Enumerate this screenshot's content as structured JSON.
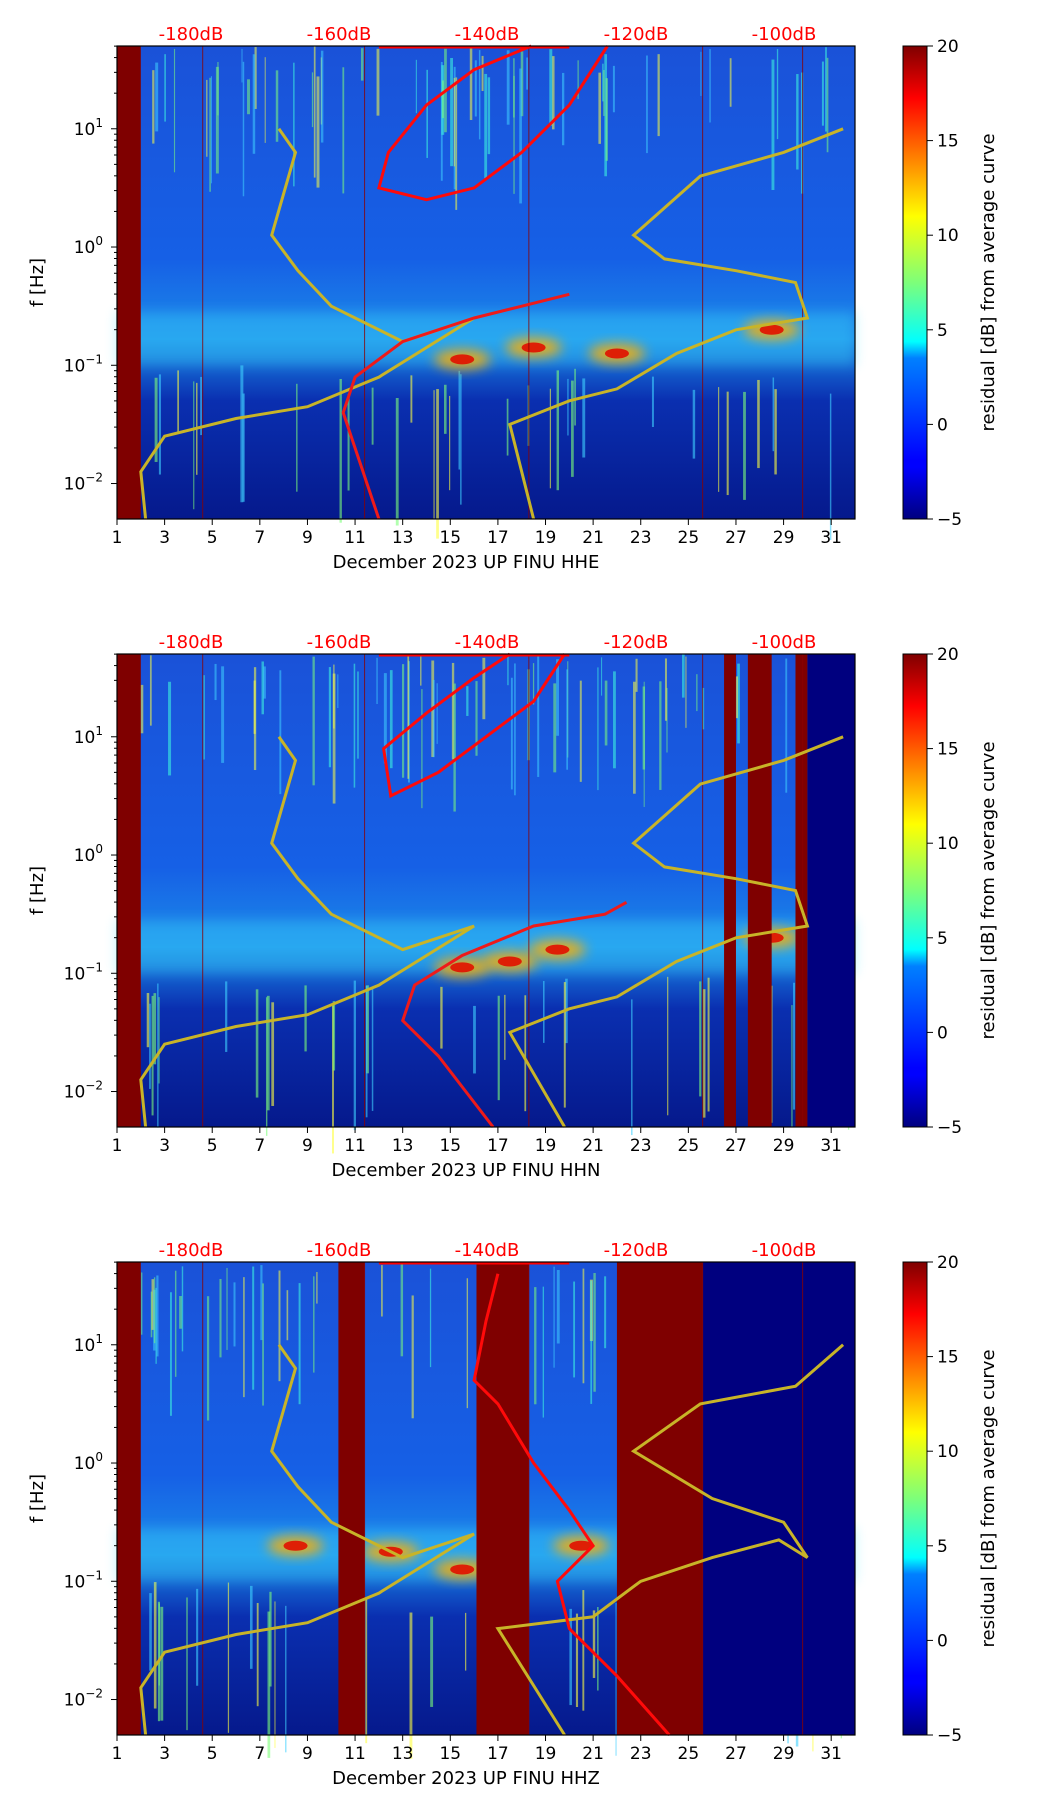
{
  "chart_data": [
    {
      "type": "heatmap",
      "title": "",
      "xlabel": "December 2023 UP FINU  HHE",
      "ylabel": "f [Hz]",
      "x_ticks": [
        "1",
        "3",
        "5",
        "7",
        "9",
        "11",
        "13",
        "15",
        "17",
        "19",
        "21",
        "23",
        "25",
        "27",
        "29",
        "31"
      ],
      "y_ticks": [
        "10^-2",
        "10^-1",
        "10^0",
        "10^1"
      ],
      "xlim": [
        1,
        32
      ],
      "ylim_log10": [
        -2.3,
        1.7
      ],
      "top_labels": [
        "-180dB",
        "-160dB",
        "-140dB",
        "-120dB",
        "-100dB"
      ],
      "colorbar": {
        "label": "residual [dB] from average curve",
        "ticks": [
          "20",
          "15",
          "10",
          "5",
          "0",
          "−5"
        ],
        "range": [
          -5,
          20
        ]
      },
      "saturated_bands": [
        [
          1,
          2
        ]
      ],
      "empty_bands": [],
      "warm_blobs": [
        [
          15.5,
          -0.95
        ],
        [
          18.5,
          -0.85
        ],
        [
          22,
          -0.9
        ],
        [
          28.5,
          -0.7
        ]
      ],
      "red_curve": [
        [
          21.6,
          1.7
        ],
        [
          20,
          1.2
        ],
        [
          18,
          0.8
        ],
        [
          16,
          0.5
        ],
        [
          14,
          0.4
        ],
        [
          12,
          0.5
        ],
        [
          12.4,
          0.8
        ],
        [
          14,
          1.2
        ],
        [
          16,
          1.5
        ],
        [
          18.4,
          1.7
        ]
      ],
      "red_lower_curve": [
        [
          12,
          -2.3
        ],
        [
          11,
          -1.7
        ],
        [
          10.5,
          -1.4
        ],
        [
          11,
          -1.1
        ],
        [
          13,
          -0.8
        ],
        [
          16,
          -0.6
        ],
        [
          18,
          -0.5
        ],
        [
          20,
          -0.4
        ]
      ],
      "yellow_left_curve": [
        [
          7.8,
          1.0
        ],
        [
          8.5,
          0.8
        ],
        [
          7.5,
          0.1
        ],
        [
          8.6,
          -0.2
        ],
        [
          10,
          -0.5
        ],
        [
          13,
          -0.8
        ],
        [
          16,
          -0.6
        ],
        [
          12,
          -1.1
        ],
        [
          9,
          -1.35
        ],
        [
          6,
          -1.45
        ],
        [
          3,
          -1.6
        ],
        [
          2,
          -1.9
        ],
        [
          2.2,
          -2.3
        ]
      ],
      "yellow_right_curve": [
        [
          18.5,
          -2.3
        ],
        [
          17.5,
          -1.5
        ],
        [
          20,
          -1.3
        ],
        [
          22,
          -1.2
        ],
        [
          24.5,
          -0.9
        ],
        [
          27,
          -0.7
        ],
        [
          30,
          -0.6
        ],
        [
          29.5,
          -0.3
        ],
        [
          27,
          -0.2
        ],
        [
          24,
          -0.1
        ],
        [
          22.7,
          0.1
        ],
        [
          25.5,
          0.6
        ],
        [
          29,
          0.8
        ],
        [
          31.5,
          1.0
        ]
      ]
    },
    {
      "type": "heatmap",
      "title": "",
      "xlabel": "December 2023 UP FINU  HHN",
      "ylabel": "f [Hz]",
      "x_ticks": [
        "1",
        "3",
        "5",
        "7",
        "9",
        "11",
        "13",
        "15",
        "17",
        "19",
        "21",
        "23",
        "25",
        "27",
        "29",
        "31"
      ],
      "y_ticks": [
        "10^-2",
        "10^-1",
        "10^0",
        "10^1"
      ],
      "xlim": [
        1,
        32
      ],
      "ylim_log10": [
        -2.3,
        1.7
      ],
      "top_labels": [
        "-180dB",
        "-160dB",
        "-140dB",
        "-120dB",
        "-100dB"
      ],
      "colorbar": {
        "label": "residual [dB] from average curve",
        "ticks": [
          "20",
          "15",
          "10",
          "5",
          "0",
          "−5"
        ],
        "range": [
          -5,
          20
        ]
      },
      "saturated_bands": [
        [
          1,
          2
        ],
        [
          26.5,
          27
        ],
        [
          27.5,
          28.5
        ],
        [
          29.5,
          30
        ]
      ],
      "empty_bands": [
        [
          30,
          32
        ]
      ],
      "warm_blobs": [
        [
          15.5,
          -0.95
        ],
        [
          17.5,
          -0.9
        ],
        [
          19.5,
          -0.8
        ],
        [
          28.5,
          -0.7
        ]
      ],
      "red_curve": [
        [
          19.8,
          1.7
        ],
        [
          18.5,
          1.3
        ],
        [
          16.5,
          1.0
        ],
        [
          14.5,
          0.7
        ],
        [
          12.5,
          0.5
        ],
        [
          12.2,
          0.9
        ],
        [
          14,
          1.2
        ],
        [
          16,
          1.5
        ],
        [
          17.5,
          1.7
        ]
      ],
      "red_lower_curve": [
        [
          16.8,
          -2.3
        ],
        [
          14.5,
          -1.7
        ],
        [
          13,
          -1.4
        ],
        [
          13.5,
          -1.1
        ],
        [
          15.5,
          -0.85
        ],
        [
          18.5,
          -0.6
        ],
        [
          21.5,
          -0.5
        ],
        [
          22.4,
          -0.4
        ]
      ],
      "yellow_left_curve": [
        [
          7.8,
          1.0
        ],
        [
          8.5,
          0.8
        ],
        [
          7.5,
          0.1
        ],
        [
          8.6,
          -0.2
        ],
        [
          10,
          -0.5
        ],
        [
          13,
          -0.8
        ],
        [
          16,
          -0.6
        ],
        [
          12,
          -1.1
        ],
        [
          9,
          -1.35
        ],
        [
          6,
          -1.45
        ],
        [
          3,
          -1.6
        ],
        [
          2,
          -1.9
        ],
        [
          2.2,
          -2.3
        ]
      ],
      "yellow_right_curve": [
        [
          19.8,
          -2.3
        ],
        [
          17.5,
          -1.5
        ],
        [
          20,
          -1.3
        ],
        [
          22,
          -1.2
        ],
        [
          24.5,
          -0.9
        ],
        [
          27,
          -0.7
        ],
        [
          30,
          -0.6
        ],
        [
          29.5,
          -0.3
        ],
        [
          27,
          -0.2
        ],
        [
          24,
          -0.1
        ],
        [
          22.7,
          0.1
        ],
        [
          25.5,
          0.6
        ],
        [
          29,
          0.8
        ],
        [
          31.5,
          1.0
        ]
      ]
    },
    {
      "type": "heatmap",
      "title": "",
      "xlabel": "December 2023 UP FINU  HHZ",
      "ylabel": "f [Hz]",
      "x_ticks": [
        "1",
        "3",
        "5",
        "7",
        "9",
        "11",
        "13",
        "15",
        "17",
        "19",
        "21",
        "23",
        "25",
        "27",
        "29",
        "31"
      ],
      "y_ticks": [
        "10^-2",
        "10^-1",
        "10^0",
        "10^1"
      ],
      "xlim": [
        1,
        32
      ],
      "ylim_log10": [
        -2.3,
        1.7
      ],
      "top_labels": [
        "-180dB",
        "-160dB",
        "-140dB",
        "-120dB",
        "-100dB"
      ],
      "colorbar": {
        "label": "residual [dB] from average curve",
        "ticks": [
          "20",
          "15",
          "10",
          "5",
          "0",
          "−5"
        ],
        "range": [
          -5,
          20
        ]
      },
      "saturated_bands": [
        [
          1,
          2
        ],
        [
          10.3,
          11.4
        ],
        [
          16.1,
          18.3
        ],
        [
          22,
          25.6
        ]
      ],
      "empty_bands": [
        [
          25.6,
          32
        ]
      ],
      "warm_blobs": [
        [
          8.5,
          -0.7
        ],
        [
          12.5,
          -0.75
        ],
        [
          15.5,
          -0.9
        ],
        [
          20.5,
          -0.7
        ]
      ],
      "red_curve": [
        [
          24.2,
          -2.3
        ],
        [
          22,
          -1.8
        ],
        [
          20,
          -1.4
        ],
        [
          19.5,
          -1.0
        ],
        [
          21,
          -0.7
        ],
        [
          20,
          -0.4
        ],
        [
          18.5,
          0.0
        ],
        [
          17,
          0.5
        ],
        [
          16,
          0.7
        ],
        [
          16.5,
          1.2
        ],
        [
          17,
          1.6
        ]
      ],
      "red_lower_curve": [],
      "yellow_left_curve": [
        [
          7.8,
          1.0
        ],
        [
          8.5,
          0.8
        ],
        [
          7.5,
          0.1
        ],
        [
          8.6,
          -0.2
        ],
        [
          10,
          -0.5
        ],
        [
          13,
          -0.8
        ],
        [
          16,
          -0.6
        ],
        [
          12,
          -1.1
        ],
        [
          9,
          -1.35
        ],
        [
          6,
          -1.45
        ],
        [
          3,
          -1.6
        ],
        [
          2,
          -1.9
        ],
        [
          2.2,
          -2.3
        ]
      ],
      "yellow_right_curve": [
        [
          19.8,
          -2.3
        ],
        [
          17,
          -1.4
        ],
        [
          21,
          -1.3
        ],
        [
          23,
          -1.0
        ],
        [
          26,
          -0.8
        ],
        [
          28.8,
          -0.65
        ],
        [
          30,
          -0.8
        ],
        [
          29,
          -0.5
        ],
        [
          26,
          -0.3
        ],
        [
          22.7,
          0.1
        ],
        [
          25.5,
          0.5
        ],
        [
          29.5,
          0.65
        ],
        [
          31.5,
          1.0
        ]
      ]
    }
  ]
}
